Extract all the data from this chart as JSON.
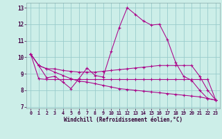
{
  "xlabel": "Windchill (Refroidissement éolien,°C)",
  "background_color": "#cceee8",
  "grid_color": "#99cccc",
  "line_color": "#aa0088",
  "x_values": [
    0,
    1,
    2,
    3,
    4,
    5,
    6,
    7,
    8,
    9,
    10,
    11,
    12,
    13,
    14,
    15,
    16,
    17,
    18,
    19,
    20,
    21,
    22,
    23
  ],
  "line1_y": [
    10.2,
    9.5,
    8.75,
    8.85,
    8.5,
    8.1,
    8.7,
    9.35,
    8.9,
    8.8,
    10.35,
    11.8,
    13.0,
    12.6,
    12.2,
    11.95,
    12.0,
    11.05,
    9.7,
    8.85,
    8.6,
    8.0,
    7.5,
    7.4
  ],
  "line2_y": [
    10.2,
    9.5,
    9.3,
    9.3,
    9.2,
    9.15,
    9.1,
    9.1,
    9.1,
    9.15,
    9.2,
    9.25,
    9.3,
    9.35,
    9.4,
    9.45,
    9.5,
    9.5,
    9.5,
    9.5,
    9.5,
    8.85,
    8.0,
    7.4
  ],
  "line3_y": [
    10.2,
    8.7,
    8.65,
    8.65,
    8.65,
    8.65,
    8.65,
    8.65,
    8.65,
    8.65,
    8.65,
    8.65,
    8.65,
    8.65,
    8.65,
    8.65,
    8.65,
    8.65,
    8.65,
    8.65,
    8.65,
    8.65,
    8.65,
    7.4
  ],
  "line4_y": [
    10.2,
    9.5,
    9.3,
    9.1,
    8.9,
    8.7,
    8.55,
    8.5,
    8.4,
    8.3,
    8.2,
    8.1,
    8.05,
    8.0,
    7.95,
    7.9,
    7.85,
    7.8,
    7.75,
    7.7,
    7.65,
    7.6,
    7.5,
    7.4
  ],
  "ylim": [
    6.9,
    13.3
  ],
  "xlim": [
    -0.5,
    23.5
  ],
  "yticks": [
    7,
    8,
    9,
    10,
    11,
    12,
    13
  ],
  "xticks": [
    0,
    1,
    2,
    3,
    4,
    5,
    6,
    7,
    8,
    9,
    10,
    11,
    12,
    13,
    14,
    15,
    16,
    17,
    18,
    19,
    20,
    21,
    22,
    23
  ]
}
